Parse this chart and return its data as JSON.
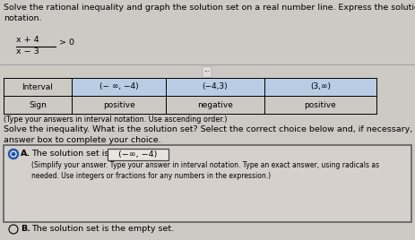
{
  "bg_color": "#cdc9c5",
  "title_text": "Solve the rational inequality and graph the solution set on a real number line. Express the solution set in interval\nnotation.",
  "fraction_numerator": "x + 4",
  "fraction_denominator": "x − 3",
  "fraction_gt": "> 0",
  "table_headers": [
    "Interval",
    "(− ∞, −4)",
    "(−4,3)",
    "(3,∞)"
  ],
  "table_row2": [
    "Sign",
    "positive",
    "negative",
    "positive"
  ],
  "table_note": "(Type your answers in interval notation. Use ascending order.)",
  "solve_text": "Solve the inequality. What is the solution set? Select the correct choice below and, if necessary, fill in the\nanswer box to complete your choice.",
  "choice_a_label": "A.",
  "choice_a_prefix": "The solution set is",
  "choice_a_answer": "(−∞, −4)",
  "choice_a_sub": "(Simplify your answer. Type your answer in interval notation. Type an exact answer, using radicals as\nneeded. Use integers or fractions for any numbers in the expression.)",
  "choice_b_text": "The solution set is the empty set.",
  "font_size_main": 6.8,
  "font_size_small": 5.8,
  "font_size_table": 6.5,
  "table_col_header_bg": "#b8cce4",
  "table_cell_bg": "#dce6f1"
}
